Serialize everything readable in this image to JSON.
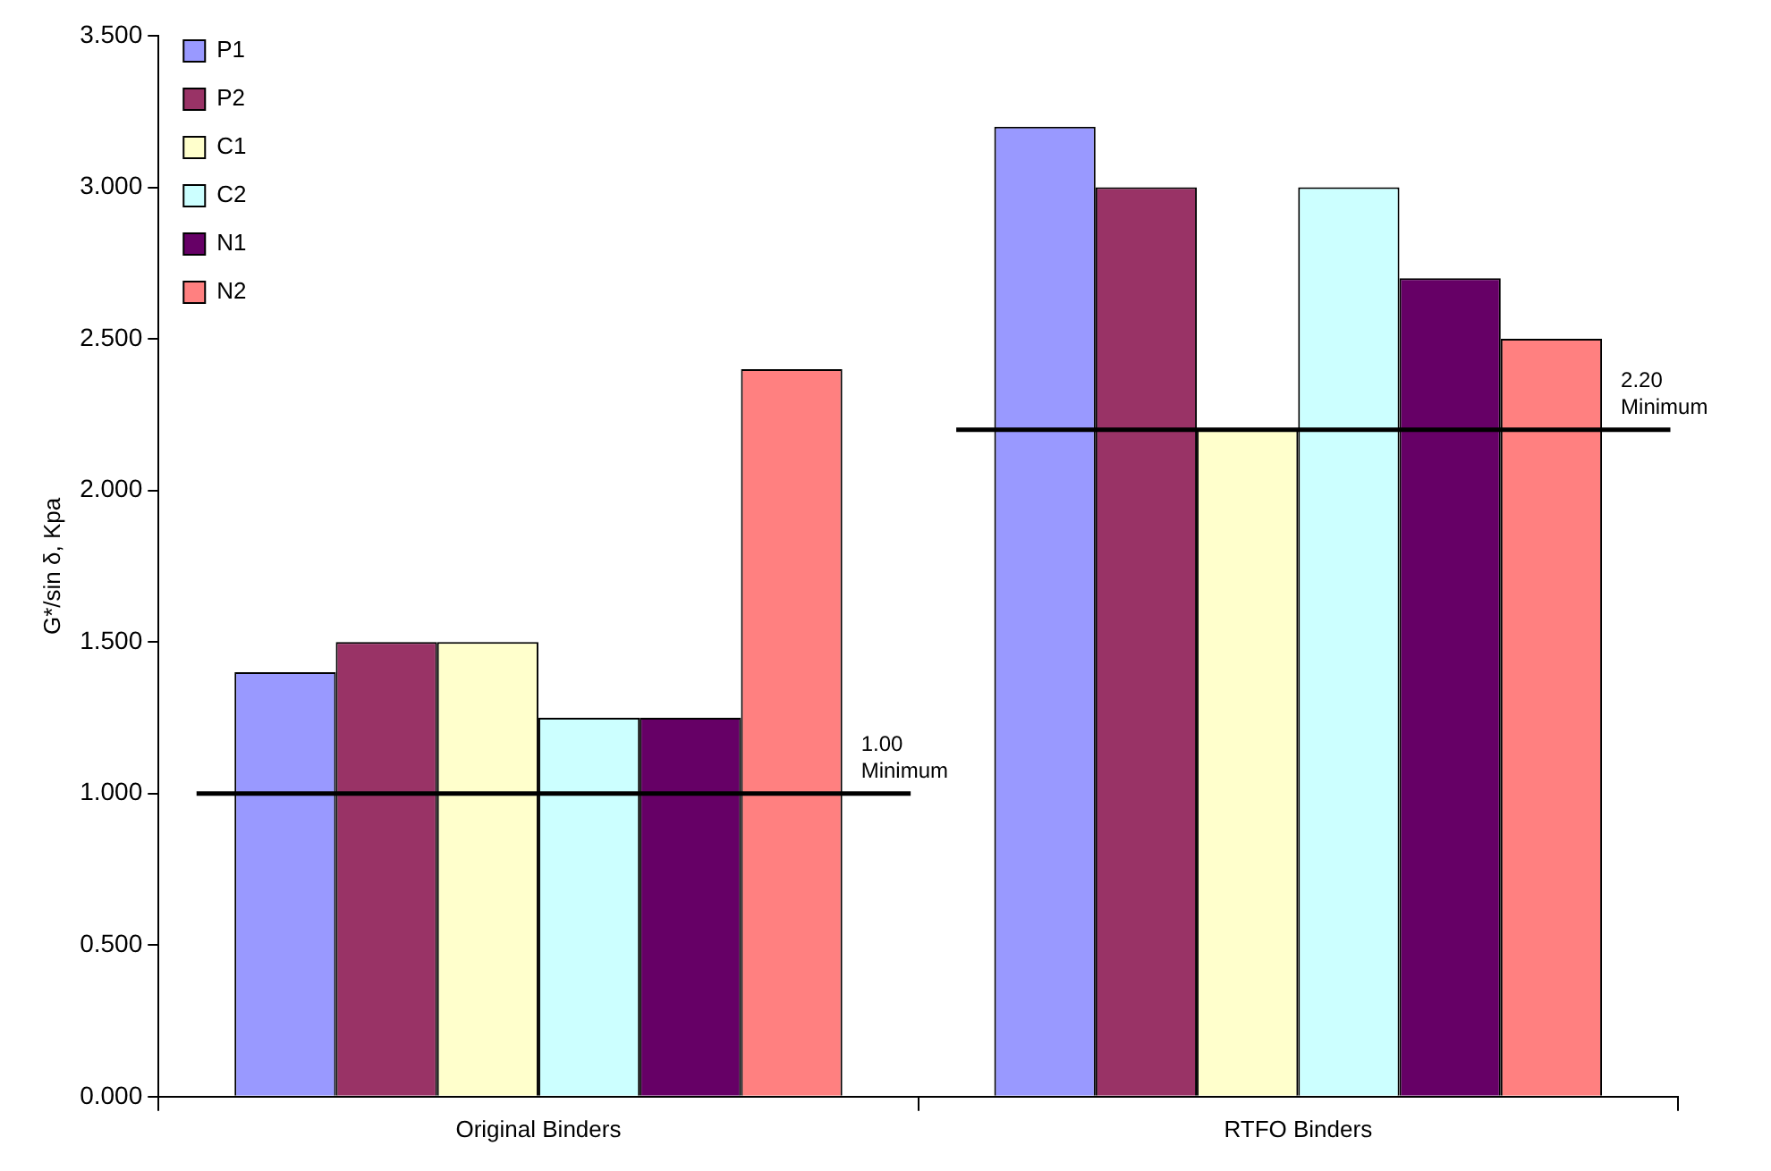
{
  "chart_data": {
    "type": "bar",
    "ylabel": "G*/sin δ, Kpa",
    "categories": [
      "Original Binders",
      "RTFO Binders"
    ],
    "series": [
      {
        "name": "P1",
        "color": "#9999ff",
        "values": [
          1.4,
          3.2
        ]
      },
      {
        "name": "P2",
        "color": "#993366",
        "values": [
          1.5,
          3.0
        ]
      },
      {
        "name": "C1",
        "color": "#ffffcc",
        "values": [
          1.5,
          2.2
        ]
      },
      {
        "name": "C2",
        "color": "#ccffff",
        "values": [
          1.25,
          3.0
        ]
      },
      {
        "name": "N1",
        "color": "#660066",
        "values": [
          1.25,
          2.7
        ]
      },
      {
        "name": "N2",
        "color": "#ff8080",
        "values": [
          2.4,
          2.5
        ]
      }
    ],
    "ylim": [
      0,
      3.5
    ],
    "yticks": [
      {
        "value": 0,
        "label": "0.000"
      },
      {
        "value": 0.5,
        "label": "0.500"
      },
      {
        "value": 1,
        "label": "1.000"
      },
      {
        "value": 1.5,
        "label": "1.500"
      },
      {
        "value": 2,
        "label": "2.000"
      },
      {
        "value": 2.5,
        "label": "2.500"
      },
      {
        "value": 3,
        "label": "3.000"
      },
      {
        "value": 3.5,
        "label": "3.500"
      }
    ],
    "ref_lines": [
      {
        "axis": "y",
        "value": 1.0,
        "label": "1.00\nMinimum",
        "color": "#000000"
      },
      {
        "axis": "y",
        "value": 2.2,
        "label": "2.20\nMinimum",
        "color": "#000000"
      }
    ],
    "grid": false,
    "legend": "top left"
  }
}
